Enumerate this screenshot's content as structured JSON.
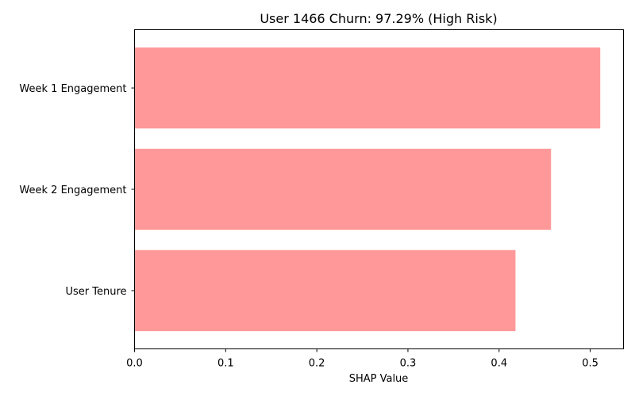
{
  "chart_data": {
    "type": "bar",
    "orientation": "horizontal",
    "title": "User 1466 Churn: 97.29% (High Risk)",
    "xlabel": "SHAP Value",
    "ylabel": "",
    "categories": [
      "Week 1 Engagement",
      "Week 2 Engagement",
      "User Tenure"
    ],
    "values": [
      0.511,
      0.457,
      0.418
    ],
    "xlim": [
      0,
      0.5365
    ],
    "xticks": [
      "0.0",
      "0.1",
      "0.2",
      "0.3",
      "0.4",
      "0.5"
    ],
    "bar_color": "#ff9999",
    "grid": false,
    "legend": "none"
  }
}
